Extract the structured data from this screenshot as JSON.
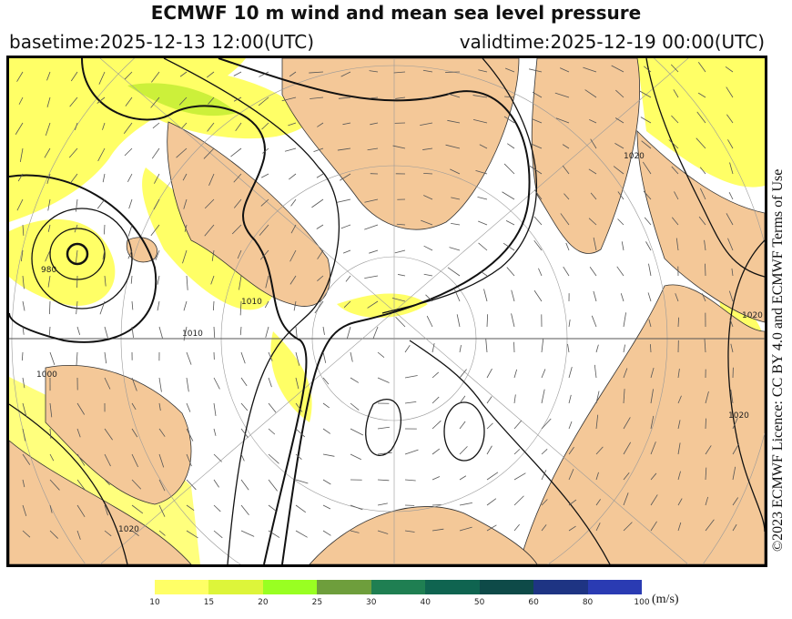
{
  "header": {
    "title": "ECMWF 10 m wind and mean sea level pressure",
    "basetime": "basetime:2025-12-13 12:00(UTC)",
    "validtime": "validtime:2025-12-19 00:00(UTC)"
  },
  "licence": "©2023 ECMWF Licence: CC BY 4.0 and ECMWF Terms of Use",
  "map": {
    "projection": "north-polar-stereographic",
    "colors": {
      "land": "#f4c898",
      "sea": "#ffffff",
      "isobar": "#111111",
      "wind_arrow": "#555555"
    },
    "isobar_labels": [
      "980",
      "1000",
      "1010",
      "1010",
      "1020",
      "1020",
      "1020",
      "1020"
    ]
  },
  "colorbar": {
    "unit": "(m/s)",
    "ticks": [
      "10",
      "15",
      "20",
      "25",
      "30",
      "40",
      "50",
      "60",
      "80",
      "100"
    ],
    "colors": [
      "#ffff66",
      "#ddf53a",
      "#99ff22",
      "#6e9e3c",
      "#1f7f52",
      "#0f6450",
      "#0e4a48",
      "#1e3483",
      "#2a3bb3"
    ]
  }
}
